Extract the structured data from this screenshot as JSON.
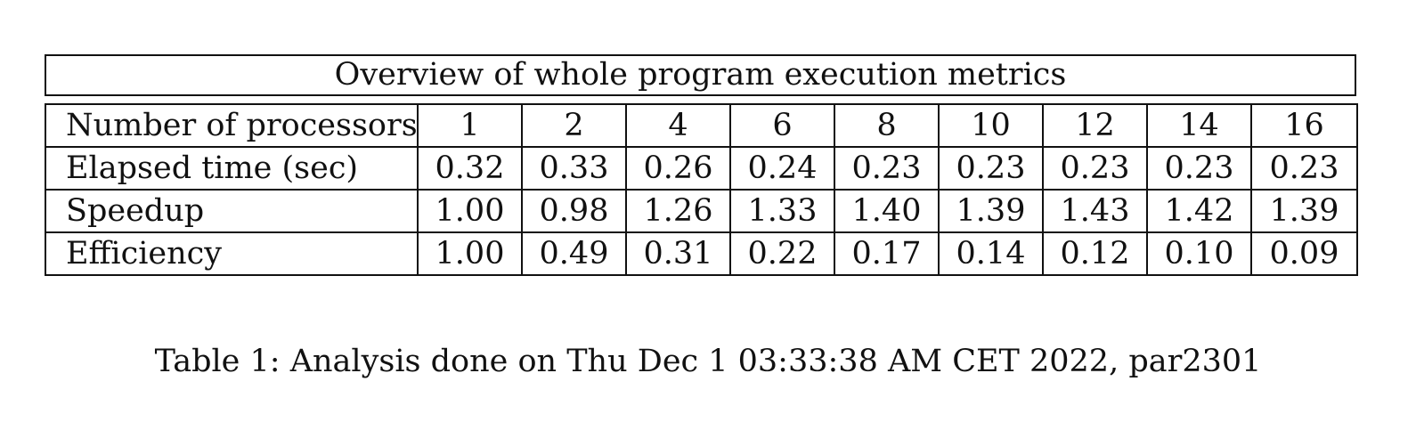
{
  "table": {
    "title": "Overview of whole program execution metrics",
    "rows": [
      {
        "label": "Number of processors",
        "values": [
          "1",
          "2",
          "4",
          "6",
          "8",
          "10",
          "12",
          "14",
          "16"
        ]
      },
      {
        "label": "Elapsed time (sec)",
        "values": [
          "0.32",
          "0.33",
          "0.26",
          "0.24",
          "0.23",
          "0.23",
          "0.23",
          "0.23",
          "0.23"
        ]
      },
      {
        "label": "Speedup",
        "values": [
          "1.00",
          "0.98",
          "1.26",
          "1.33",
          "1.40",
          "1.39",
          "1.43",
          "1.42",
          "1.39"
        ]
      },
      {
        "label": "Efficiency",
        "values": [
          "1.00",
          "0.49",
          "0.31",
          "0.22",
          "0.17",
          "0.14",
          "0.12",
          "0.10",
          "0.09"
        ]
      }
    ]
  },
  "caption": "Table 1: Analysis done on Thu Dec 1 03:33:38 AM CET 2022, par2301"
}
